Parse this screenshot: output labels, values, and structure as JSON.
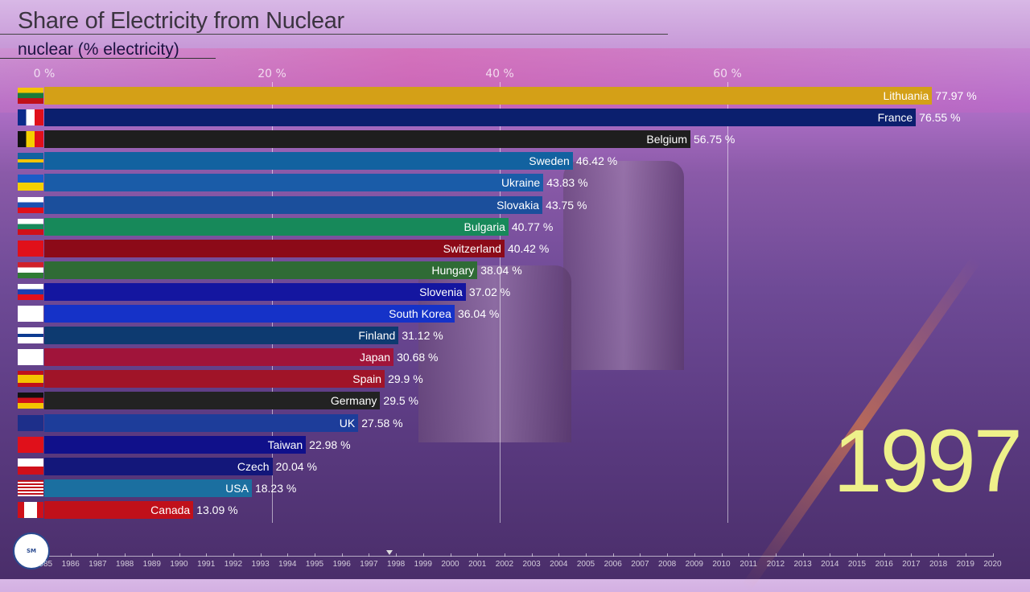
{
  "chart_data": {
    "type": "bar",
    "title": "Share of Electricity from Nuclear",
    "subtitle": "nuclear (% electricity)",
    "x_ticks": [
      "0 %",
      "20 %",
      "40 %",
      "60 %"
    ],
    "xlim": [
      0,
      80
    ],
    "grid": true,
    "year": "1997",
    "categories": [
      "Lithuania",
      "France",
      "Belgium",
      "Sweden",
      "Ukraine",
      "Slovakia",
      "Bulgaria",
      "Switzerland",
      "Hungary",
      "Slovenia",
      "South Korea",
      "Finland",
      "Japan",
      "Spain",
      "Germany",
      "UK",
      "Taiwan",
      "Czech",
      "USA",
      "Canada"
    ],
    "values": [
      77.97,
      76.55,
      56.75,
      46.42,
      43.83,
      43.75,
      40.77,
      40.42,
      38.04,
      37.02,
      36.04,
      31.12,
      30.68,
      29.9,
      29.5,
      27.58,
      22.98,
      20.04,
      18.23,
      13.09
    ],
    "value_labels": [
      "77.97 %",
      "76.55 %",
      "56.75 %",
      "46.42 %",
      "43.83 %",
      "43.75 %",
      "40.77 %",
      "40.42 %",
      "38.04 %",
      "37.02 %",
      "36.04 %",
      "31.12 %",
      "30.68 %",
      "29.9 %",
      "29.5 %",
      "27.58 %",
      "22.98 %",
      "20.04 %",
      "18.23 %",
      "13.09 %"
    ],
    "colors": [
      "#d4a017",
      "#0b1f6e",
      "#1e1e1e",
      "#1262a0",
      "#1a5ca8",
      "#1b4f9c",
      "#17895a",
      "#8c0a18",
      "#2f6b35",
      "#1416a0",
      "#1532c8",
      "#0d3a70",
      "#a0143a",
      "#a01428",
      "#222222",
      "#1d3d9a",
      "#10108a",
      "#13177a",
      "#1b6fa0",
      "#c0101a"
    ],
    "timeline": {
      "start": 1985,
      "end": 2020,
      "current": 1997.75
    }
  },
  "logo_text": "Stats Media"
}
